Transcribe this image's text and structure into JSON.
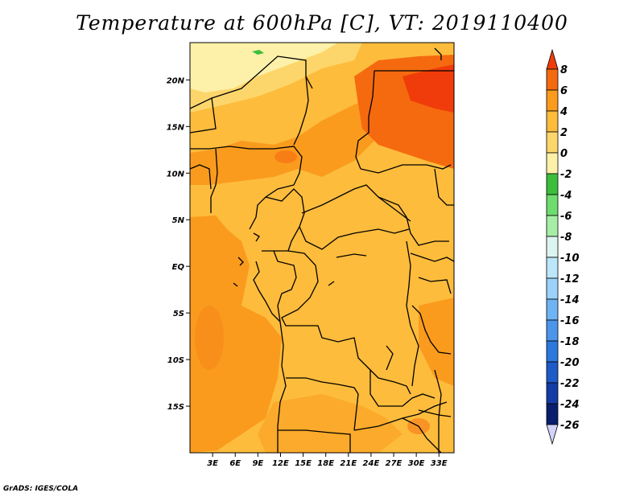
{
  "title": "Temperature at 600hPa [C], VT: 2019110400",
  "footer": "GrADS: IGES/COLA",
  "map": {
    "lon_range": [
      0,
      35
    ],
    "lat_range": [
      -20,
      24
    ],
    "x_ticks": [
      {
        "lon": 3,
        "label": "3E"
      },
      {
        "lon": 6,
        "label": "6E"
      },
      {
        "lon": 9,
        "label": "9E"
      },
      {
        "lon": 12,
        "label": "12E"
      },
      {
        "lon": 15,
        "label": "15E"
      },
      {
        "lon": 18,
        "label": "18E"
      },
      {
        "lon": 21,
        "label": "21E"
      },
      {
        "lon": 24,
        "label": "24E"
      },
      {
        "lon": 27,
        "label": "27E"
      },
      {
        "lon": 30,
        "label": "30E"
      },
      {
        "lon": 33,
        "label": "33E"
      }
    ],
    "y_ticks": [
      {
        "lat": 20,
        "label": "20N"
      },
      {
        "lat": 15,
        "label": "15N"
      },
      {
        "lat": 10,
        "label": "10N"
      },
      {
        "lat": 5,
        "label": "5N"
      },
      {
        "lat": 0,
        "label": "EQ"
      },
      {
        "lat": -5,
        "label": "5S"
      },
      {
        "lat": -10,
        "label": "10S"
      },
      {
        "lat": -15,
        "label": "15S"
      }
    ]
  },
  "colorbar": {
    "labels": [
      "8",
      "6",
      "4",
      "2",
      "0",
      "-2",
      "-4",
      "-6",
      "-8",
      "-10",
      "-12",
      "-14",
      "-16",
      "-18",
      "-20",
      "-22",
      "-24",
      "-26"
    ],
    "colors": [
      "#f03c0a",
      "#f56a0f",
      "#fa9b1e",
      "#fdbc3c",
      "#fdd66b",
      "#fdf0a8",
      "#3cbe3c",
      "#6edc6e",
      "#a6eea6",
      "#dcf5f0",
      "#bce6fa",
      "#9bd2fa",
      "#6eb4f5",
      "#4b96eb",
      "#2d78dc",
      "#1e5ac8",
      "#143ca5",
      "#0a1e6e",
      "#d2d2fa"
    ]
  },
  "legend_colors": {
    "level_-4": "#fdf0a8",
    "level_-2": "#fdd66b",
    "level_0": "#fdbc3c",
    "level_2": "#fa9b1e",
    "level_4": "#f56a0f",
    "level_6": "#f03c0a",
    "green_small": "#3cbe3c"
  }
}
